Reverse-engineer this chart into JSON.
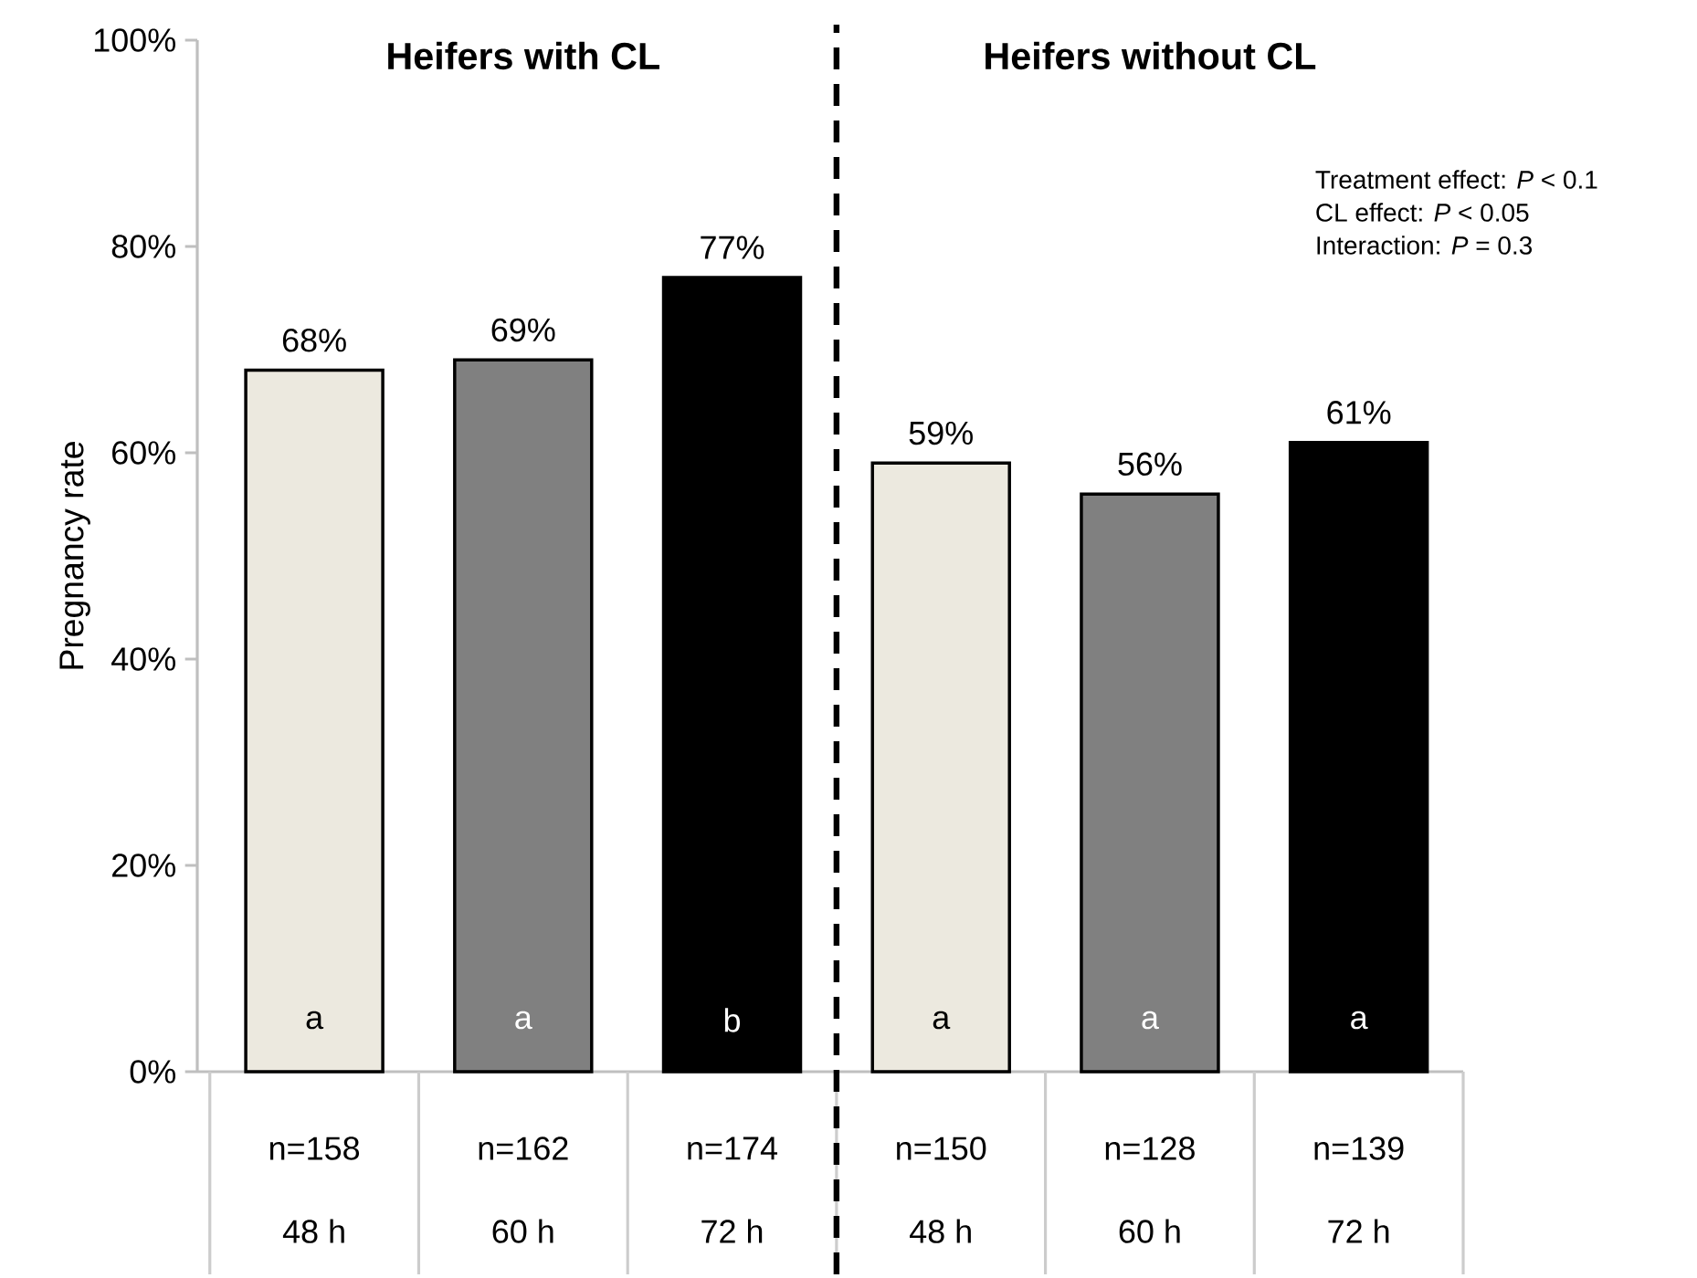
{
  "chart_data": {
    "type": "bar",
    "ylabel": "Pregnancy rate",
    "categories": [
      "48 h",
      "60 h",
      "72 h",
      "48 h",
      "60 h",
      "72 h"
    ],
    "values": [
      68,
      69,
      77,
      59,
      56,
      61
    ],
    "value_labels": [
      "68%",
      "69%",
      "77%",
      "59%",
      "56%",
      "61%"
    ],
    "colors": [
      "#ece9df",
      "#808080",
      "#000000",
      "#ece9df",
      "#808080",
      "#000000"
    ],
    "ylim": [
      0,
      100
    ],
    "yticks": [
      {
        "value": 0,
        "label": "0%"
      },
      {
        "value": 20,
        "label": "20%"
      },
      {
        "value": 40,
        "label": "40%"
      },
      {
        "value": 60,
        "label": "60%"
      },
      {
        "value": 80,
        "label": "80%"
      },
      {
        "value": 100,
        "label": "100%"
      }
    ],
    "grid": false,
    "annotations": [
      "**Heifers with CL**",
      "**Heifers without CL**",
      "a",
      "a",
      "b",
      "a",
      "a",
      "a",
      "n=158",
      "n=162",
      "n=174",
      "n=150",
      "n=128",
      "n=139",
      "Treatment effect: *P* < 0.1",
      "CL effect: *P* < 0.05",
      "Interaction: *P* = 0.3"
    ]
  }
}
